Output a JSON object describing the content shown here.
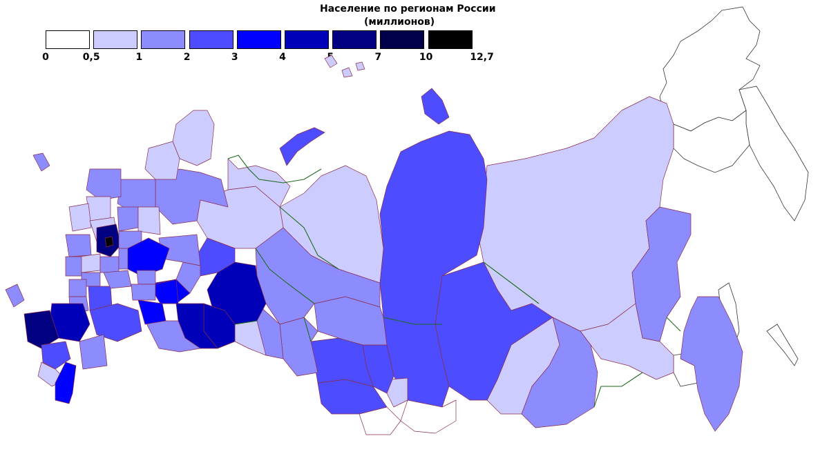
{
  "map": {
    "title_line1": "Население по регионам России",
    "title_line2": "(миллионов)"
  },
  "legend": {
    "classes": [
      {
        "from": "0",
        "to": "0,5",
        "color": "#ffffff"
      },
      {
        "from": "0,5",
        "to": "1",
        "color": "#ccccff"
      },
      {
        "from": "1",
        "to": "2",
        "color": "#8c8cff"
      },
      {
        "from": "2",
        "to": "3",
        "color": "#4d4dff"
      },
      {
        "from": "3",
        "to": "4",
        "color": "#0000ff"
      },
      {
        "from": "4",
        "to": "5",
        "color": "#0000b8"
      },
      {
        "from": "5",
        "to": "7",
        "color": "#000080"
      },
      {
        "from": "7",
        "to": "10",
        "color": "#00004a"
      },
      {
        "from": "10",
        "to": "12,7",
        "color": "#000000"
      }
    ],
    "ticks": [
      "0",
      "0,5",
      "1",
      "2",
      "3",
      "4",
      "5",
      "7",
      "10",
      "12,7"
    ]
  },
  "colors": {
    "c0": "#ffffff",
    "c1": "#ccccff",
    "c2": "#8c8cff",
    "c3": "#4d4dff",
    "c4": "#0000ff",
    "c5": "#0000b8",
    "c6": "#000080",
    "c7": "#00004a",
    "c8": "#000000",
    "region_border": "#8a2a4a",
    "federal_border": "#1c6b1c"
  }
}
